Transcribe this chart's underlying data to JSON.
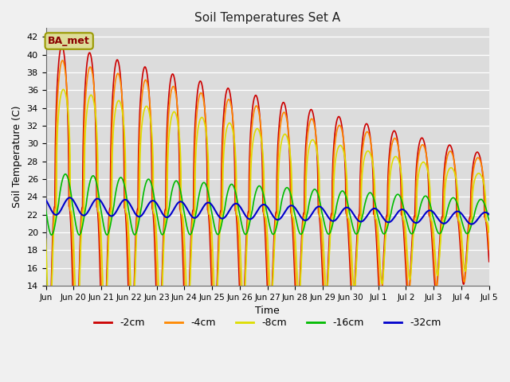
{
  "title": "Soil Temperatures Set A",
  "xlabel": "Time",
  "ylabel": "Soil Temperature (C)",
  "ylim": [
    14,
    43
  ],
  "yticks": [
    14,
    16,
    18,
    20,
    22,
    24,
    26,
    28,
    30,
    32,
    34,
    36,
    38,
    40,
    42
  ],
  "legend_labels": [
    "-2cm",
    "-4cm",
    "-8cm",
    "-16cm",
    "-32cm"
  ],
  "legend_colors": [
    "#cc0000",
    "#ff8800",
    "#dddd00",
    "#00bb00",
    "#0000cc"
  ],
  "annotation_text": "BA_met",
  "annotation_bg": "#dddd99",
  "annotation_border": "#999900",
  "plot_bg": "#dcdcdc",
  "line_width": 1.2
}
